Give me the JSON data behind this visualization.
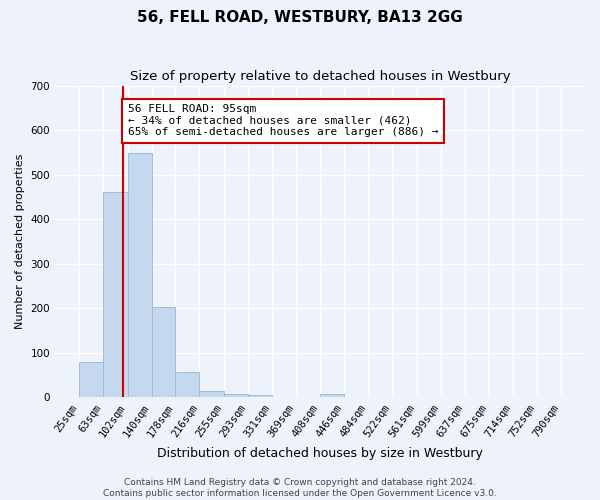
{
  "title": "56, FELL ROAD, WESTBURY, BA13 2GG",
  "subtitle": "Size of property relative to detached houses in Westbury",
  "xlabel": "Distribution of detached houses by size in Westbury",
  "ylabel": "Number of detached properties",
  "bar_color": "#c5d8ee",
  "bar_edge_color": "#a0bcd8",
  "vline_x": 95,
  "vline_color": "#cc0000",
  "annotation_text": "56 FELL ROAD: 95sqm\n← 34% of detached houses are smaller (462)\n65% of semi-detached houses are larger (886) →",
  "annotation_box_color": "#ffffff",
  "annotation_box_edge": "#cc0000",
  "bin_edges": [
    25,
    63,
    102,
    140,
    178,
    216,
    255,
    293,
    331,
    369,
    408,
    446,
    484,
    522,
    561,
    599,
    637,
    675,
    714,
    752,
    790
  ],
  "bar_heights": [
    80,
    462,
    548,
    203,
    57,
    15,
    7,
    5,
    0,
    0,
    7,
    0,
    0,
    0,
    0,
    0,
    0,
    0,
    0,
    0
  ],
  "ylim": [
    0,
    700
  ],
  "yticks": [
    0,
    100,
    200,
    300,
    400,
    500,
    600,
    700
  ],
  "background_color": "#eef2fa",
  "grid_color": "#ffffff",
  "footer_text": "Contains HM Land Registry data © Crown copyright and database right 2024.\nContains public sector information licensed under the Open Government Licence v3.0.",
  "title_fontsize": 11,
  "subtitle_fontsize": 9.5,
  "xlabel_fontsize": 9,
  "ylabel_fontsize": 8,
  "tick_fontsize": 7.5,
  "annotation_fontsize": 8,
  "footer_fontsize": 6.5
}
